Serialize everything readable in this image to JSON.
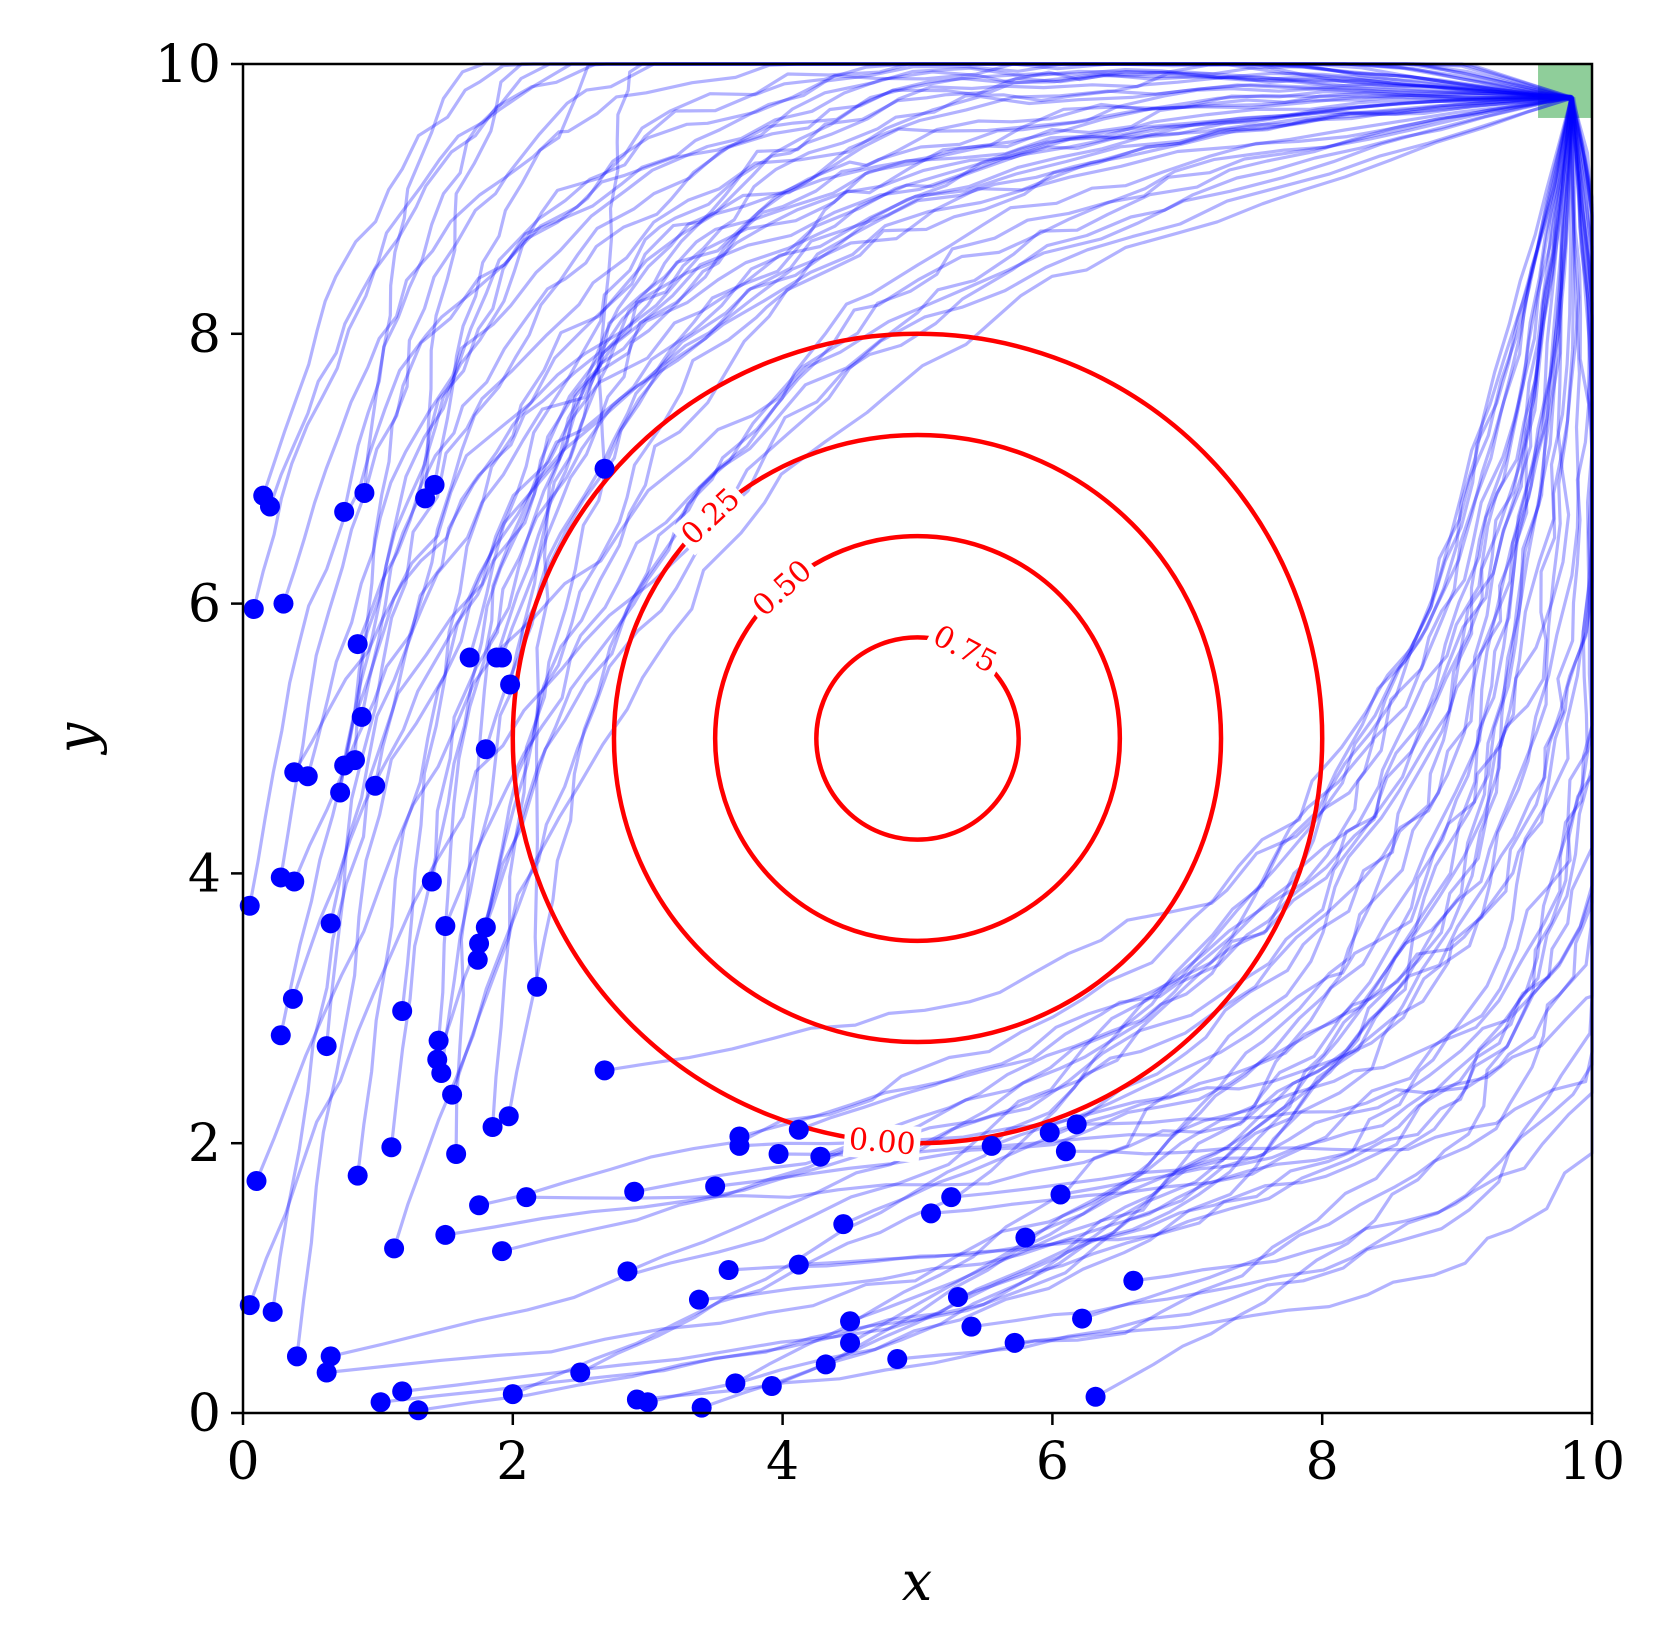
{
  "chart_data": {
    "type": "line",
    "title": "",
    "xlabel": "x",
    "ylabel": "y",
    "xlim": [
      0,
      10
    ],
    "ylim": [
      0,
      10
    ],
    "xticks": [
      "0",
      "2",
      "4",
      "6",
      "8",
      "10"
    ],
    "yticks": [
      "0",
      "2",
      "4",
      "6",
      "8",
      "10"
    ],
    "grid": false,
    "colors": {
      "trajectory": "#0000ff",
      "contour": "#ff0000",
      "goal": "#8fce9a",
      "axis": "#000000"
    },
    "goal_region": {
      "x": [
        9.6,
        10
      ],
      "y": [
        9.6,
        10
      ]
    },
    "contours": {
      "center": [
        5,
        5
      ],
      "levels": [
        {
          "level": 0.0,
          "label": "0.00",
          "radius": 3.0
        },
        {
          "level": 0.25,
          "label": "0.25",
          "radius": 2.25
        },
        {
          "level": 0.5,
          "label": "0.50",
          "radius": 1.5
        },
        {
          "level": 0.75,
          "label": "0.75",
          "radius": 0.75
        }
      ]
    },
    "target": [
      9.85,
      9.75
    ],
    "start_points": [
      [
        0.15,
        6.8
      ],
      [
        0.2,
        6.72
      ],
      [
        0.75,
        6.68
      ],
      [
        0.9,
        6.82
      ],
      [
        1.35,
        6.78
      ],
      [
        1.42,
        6.88
      ],
      [
        2.68,
        7.0
      ],
      [
        0.08,
        5.96
      ],
      [
        0.3,
        6.0
      ],
      [
        0.85,
        5.7
      ],
      [
        1.68,
        5.6
      ],
      [
        1.88,
        5.6
      ],
      [
        1.92,
        5.6
      ],
      [
        1.98,
        5.4
      ],
      [
        0.88,
        5.16
      ],
      [
        1.8,
        4.92
      ],
      [
        0.38,
        4.75
      ],
      [
        0.48,
        4.72
      ],
      [
        0.75,
        4.8
      ],
      [
        0.83,
        4.84
      ],
      [
        0.72,
        4.6
      ],
      [
        0.98,
        4.65
      ],
      [
        0.28,
        3.97
      ],
      [
        0.38,
        3.94
      ],
      [
        0.05,
        3.76
      ],
      [
        1.4,
        3.94
      ],
      [
        0.65,
        3.63
      ],
      [
        1.5,
        3.61
      ],
      [
        1.8,
        3.6
      ],
      [
        1.75,
        3.48
      ],
      [
        1.74,
        3.36
      ],
      [
        2.18,
        3.16
      ],
      [
        0.37,
        3.07
      ],
      [
        1.18,
        2.98
      ],
      [
        0.28,
        2.8
      ],
      [
        0.62,
        2.72
      ],
      [
        1.45,
        2.76
      ],
      [
        1.44,
        2.62
      ],
      [
        1.47,
        2.52
      ],
      [
        1.55,
        2.36
      ],
      [
        2.68,
        2.54
      ],
      [
        1.85,
        2.12
      ],
      [
        1.97,
        2.2
      ],
      [
        1.1,
        1.97
      ],
      [
        1.58,
        1.92
      ],
      [
        0.85,
        1.76
      ],
      [
        0.1,
        1.72
      ],
      [
        3.68,
        2.05
      ],
      [
        3.68,
        1.98
      ],
      [
        4.12,
        2.1
      ],
      [
        3.97,
        1.92
      ],
      [
        4.28,
        1.9
      ],
      [
        5.55,
        1.98
      ],
      [
        5.98,
        2.08
      ],
      [
        6.18,
        2.14
      ],
      [
        6.1,
        1.94
      ],
      [
        1.75,
        1.54
      ],
      [
        2.1,
        1.6
      ],
      [
        2.9,
        1.64
      ],
      [
        3.5,
        1.68
      ],
      [
        5.25,
        1.6
      ],
      [
        5.1,
        1.48
      ],
      [
        6.06,
        1.62
      ],
      [
        1.12,
        1.22
      ],
      [
        1.5,
        1.32
      ],
      [
        1.92,
        1.2
      ],
      [
        4.45,
        1.4
      ],
      [
        5.8,
        1.3
      ],
      [
        2.85,
        1.05
      ],
      [
        3.6,
        1.06
      ],
      [
        4.12,
        1.1
      ],
      [
        6.6,
        0.98
      ],
      [
        0.05,
        0.8
      ],
      [
        0.22,
        0.75
      ],
      [
        3.38,
        0.84
      ],
      [
        5.3,
        0.86
      ],
      [
        6.22,
        0.7
      ],
      [
        4.5,
        0.68
      ],
      [
        0.4,
        0.42
      ],
      [
        0.65,
        0.42
      ],
      [
        0.62,
        0.3
      ],
      [
        2.5,
        0.3
      ],
      [
        4.5,
        0.52
      ],
      [
        5.4,
        0.64
      ],
      [
        5.72,
        0.52
      ],
      [
        4.32,
        0.36
      ],
      [
        4.85,
        0.4
      ],
      [
        1.18,
        0.16
      ],
      [
        1.02,
        0.08
      ],
      [
        1.3,
        0.02
      ],
      [
        2.0,
        0.14
      ],
      [
        2.92,
        0.1
      ],
      [
        3.0,
        0.08
      ],
      [
        3.4,
        0.04
      ],
      [
        3.65,
        0.22
      ],
      [
        3.92,
        0.2
      ],
      [
        6.32,
        0.12
      ]
    ]
  }
}
